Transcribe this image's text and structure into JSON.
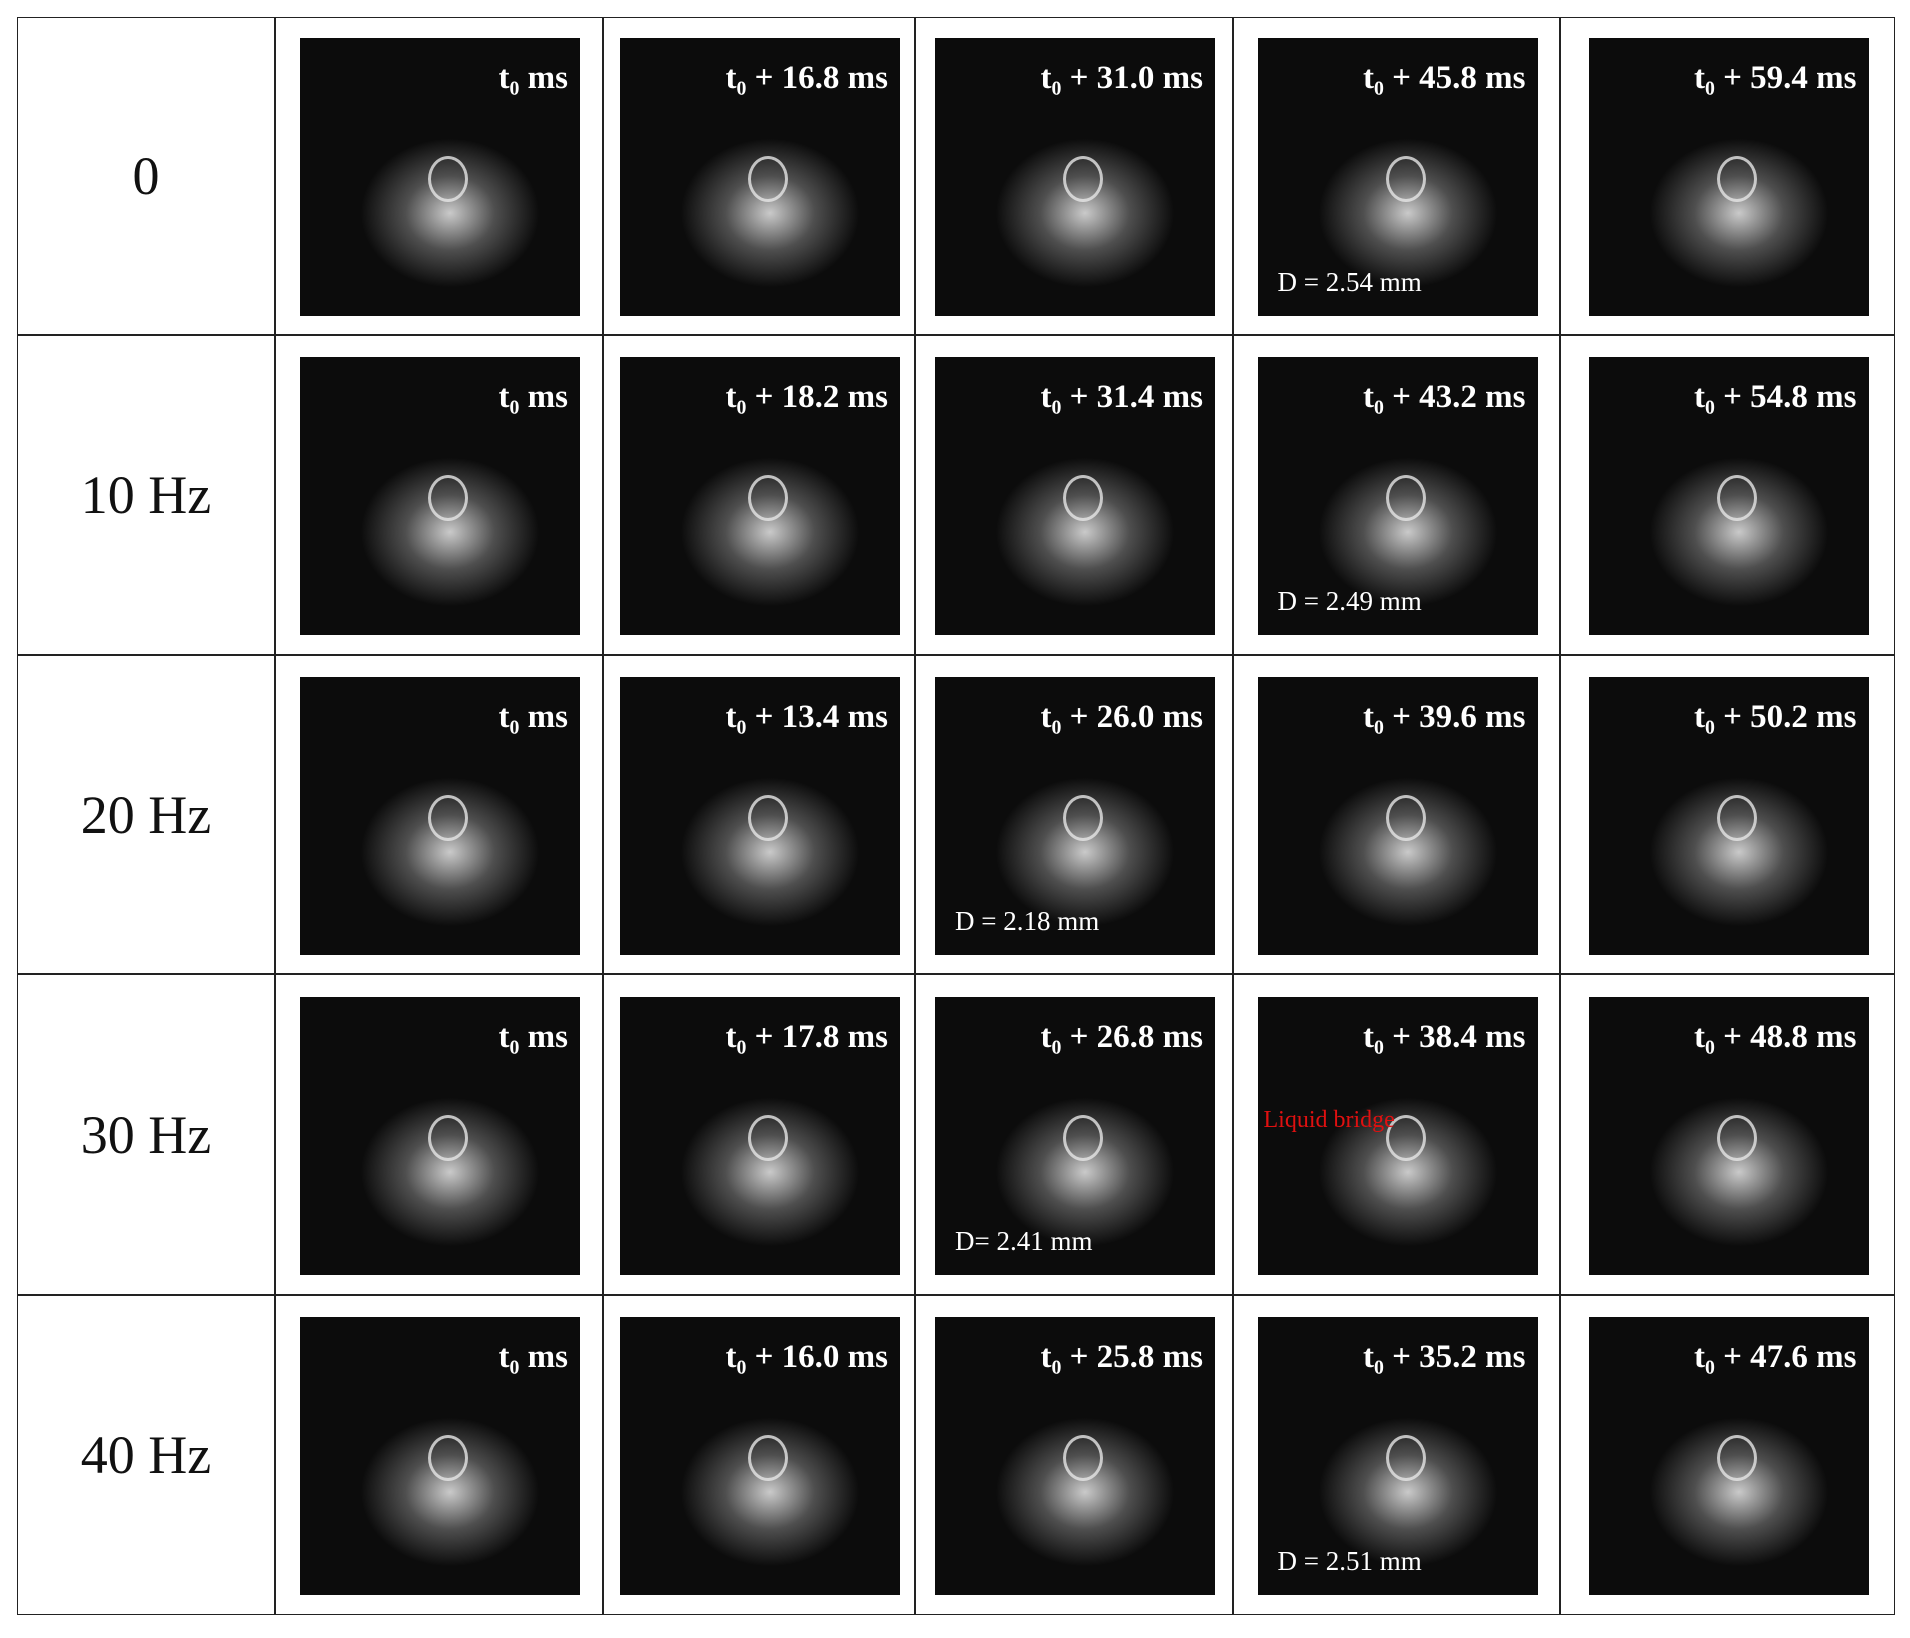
{
  "rows": [
    {
      "label": "0",
      "frames": [
        {
          "time": "t₀ ms"
        },
        {
          "time": "t₀ + 16.8 ms"
        },
        {
          "time": "t₀ + 31.0 ms"
        },
        {
          "time": "t₀ + 45.8 ms",
          "note": "D = 2.54 mm"
        },
        {
          "time": "t₀ + 59.4 ms"
        }
      ]
    },
    {
      "label": "10 Hz",
      "frames": [
        {
          "time": "t₀ ms"
        },
        {
          "time": "t₀ + 18.2 ms"
        },
        {
          "time": "t₀ + 31.4 ms"
        },
        {
          "time": "t₀ + 43.2 ms",
          "note": "D = 2.49 mm"
        },
        {
          "time": "t₀ + 54.8 ms"
        }
      ]
    },
    {
      "label": "20 Hz",
      "frames": [
        {
          "time": "t₀ ms"
        },
        {
          "time": "t₀ + 13.4 ms"
        },
        {
          "time": "t₀ + 26.0 ms",
          "note": "D = 2.18 mm"
        },
        {
          "time": "t₀ + 39.6 ms"
        },
        {
          "time": "t₀ + 50.2 ms"
        }
      ]
    },
    {
      "label": "30 Hz",
      "frames": [
        {
          "time": "t₀ ms"
        },
        {
          "time": "t₀ + 17.8 ms"
        },
        {
          "time": "t₀ + 26.8 ms",
          "note": "D= 2.41 mm"
        },
        {
          "time": "t₀ + 38.4 ms",
          "callout": "Liquid bridge"
        },
        {
          "time": "t₀ + 48.8 ms"
        }
      ]
    },
    {
      "label": "40 Hz",
      "frames": [
        {
          "time": "t₀ ms"
        },
        {
          "time": "t₀ + 16.0 ms"
        },
        {
          "time": "t₀ + 25.8 ms"
        },
        {
          "time": "t₀ + 35.2 ms",
          "note": "D = 2.51 mm"
        },
        {
          "time": "t₀ + 47.6 ms"
        }
      ]
    }
  ]
}
